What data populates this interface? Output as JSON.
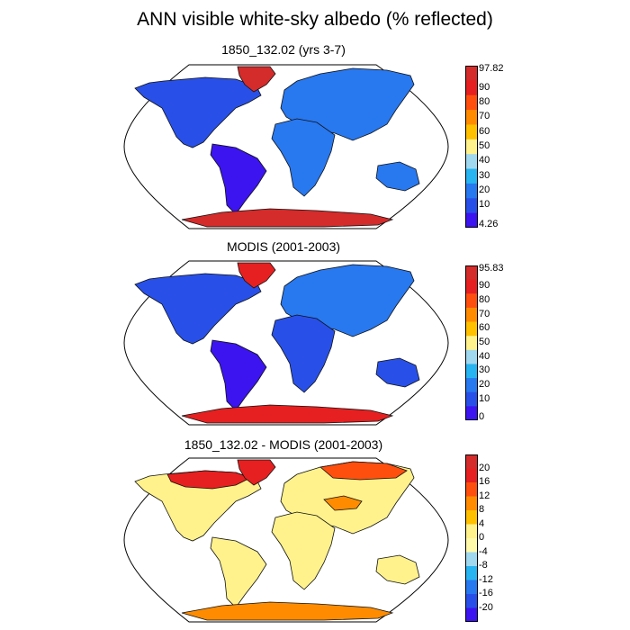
{
  "title": "ANN visible white-sky albedo (% reflected)",
  "chart_data": [
    {
      "type": "heatmap",
      "subtitle": "1850_132.02 (yrs 3-7)",
      "projection": "Robinson",
      "colorbar": {
        "labels": [
          "97.82",
          "90",
          "80",
          "70",
          "60",
          "50",
          "40",
          "30",
          "20",
          "10",
          "4.26"
        ],
        "colors": [
          "#d42b2b",
          "#e62020",
          "#ff4f0f",
          "#ff8c00",
          "#ffc000",
          "#fff28c",
          "#a0d8ef",
          "#28b4f0",
          "#2878f0",
          "#2850e8",
          "#3c14f0"
        ],
        "max": 97.82,
        "min": 4.26
      },
      "regions": {
        "greenland": "#d42b2b",
        "antarctica": "#d42b2b",
        "north-america": "#2850e8",
        "south-america": "#3c14f0",
        "eurasia": "#2878f0",
        "africa": "#2878f0",
        "australia": "#2878f0"
      }
    },
    {
      "type": "heatmap",
      "subtitle": "MODIS (2001-2003)",
      "projection": "Robinson",
      "colorbar": {
        "labels": [
          "95.83",
          "90",
          "80",
          "70",
          "60",
          "50",
          "40",
          "30",
          "20",
          "10",
          "0"
        ],
        "colors": [
          "#d42b2b",
          "#e62020",
          "#ff4f0f",
          "#ff8c00",
          "#ffc000",
          "#fff28c",
          "#a0d8ef",
          "#28b4f0",
          "#2878f0",
          "#2850e8",
          "#3c14f0"
        ],
        "max": 95.83,
        "min": 0
      },
      "regions": {
        "greenland": "#e62020",
        "antarctica": "#e62020",
        "north-america": "#2850e8",
        "south-america": "#3c14f0",
        "eurasia": "#2878f0",
        "africa": "#2850e8",
        "australia": "#2850e8"
      }
    },
    {
      "type": "heatmap",
      "subtitle": "1850_132.02 - MODIS (2001-2003)",
      "projection": "Robinson",
      "colorbar": {
        "labels": [
          "20",
          "16",
          "12",
          "8",
          "4",
          "0",
          "-4",
          "-8",
          "-12",
          "-16",
          "-20"
        ],
        "colors": [
          "#d42b2b",
          "#e62020",
          "#ff4f0f",
          "#ff8c00",
          "#ffc000",
          "#fff28c",
          "#fffaaa",
          "#a0d8ef",
          "#28b4f0",
          "#2878f0",
          "#2850e8",
          "#3c14f0"
        ]
      },
      "regions": {
        "greenland": "#e62020",
        "antarctica": "#ff8c00",
        "north-america": "#fff28c",
        "south-america": "#fff28c",
        "eurasia": "#fff28c",
        "africa": "#fff28c",
        "australia": "#fff28c",
        "canada-north": "#e62020",
        "siberia": "#ff4f0f",
        "central-asia": "#ff8c00"
      }
    }
  ]
}
